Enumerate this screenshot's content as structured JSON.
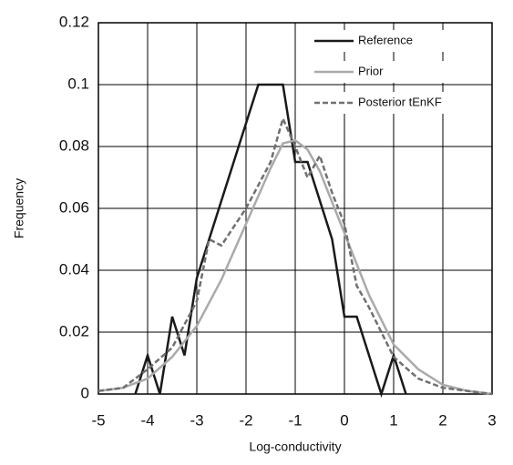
{
  "chart_data": {
    "type": "line",
    "xlabel": "Log-conductivity",
    "ylabel": "Frequency",
    "xlim": [
      -5,
      3
    ],
    "ylim": [
      0,
      0.12
    ],
    "xticks": [
      -5,
      -4,
      -3,
      -2,
      -1,
      0,
      1,
      2,
      3
    ],
    "yticks": [
      0,
      0.02,
      0.04,
      0.06,
      0.08,
      0.1,
      0.12
    ],
    "grid": true,
    "legend": "upper right",
    "series": [
      {
        "name": "Reference",
        "color": "#1a1a1a",
        "dash": "solid",
        "x": [
          -4.25,
          -4,
          -3.75,
          -3.5,
          -3.25,
          -3,
          -2.75,
          -2.5,
          -2.25,
          -2,
          -1.75,
          -1.5,
          -1.25,
          -1,
          -0.75,
          -0.5,
          -0.25,
          0,
          0.25,
          0.5,
          0.75,
          1,
          1.25
        ],
        "values": [
          0,
          0.0125,
          0,
          0.025,
          0.0125,
          0.0375,
          0.05,
          0.0625,
          0.075,
          0.0875,
          0.1,
          0.1,
          0.1,
          0.075,
          0.075,
          0.0625,
          0.05,
          0.025,
          0.025,
          0.0125,
          0,
          0.0125,
          0
        ]
      },
      {
        "name": "Prior",
        "color": "#aaaaaa",
        "dash": "solid",
        "x": [
          -5,
          -4.5,
          -4,
          -3.5,
          -3,
          -2.5,
          -2,
          -1.5,
          -1.25,
          -1,
          -0.75,
          -0.5,
          0,
          0.5,
          1,
          1.5,
          2,
          2.5,
          3
        ],
        "values": [
          0.001,
          0.002,
          0.005,
          0.012,
          0.022,
          0.037,
          0.055,
          0.073,
          0.081,
          0.082,
          0.079,
          0.072,
          0.052,
          0.032,
          0.016,
          0.008,
          0.003,
          0.001,
          0
        ]
      },
      {
        "name": "Posterior tEnKF",
        "color": "#707070",
        "dash": "dashed",
        "x": [
          -5,
          -4.5,
          -4,
          -3.5,
          -3,
          -2.75,
          -2.5,
          -2,
          -1.5,
          -1.25,
          -1,
          -0.75,
          -0.5,
          -0.25,
          0,
          0.25,
          0.5,
          1,
          1.5,
          2,
          2.5,
          3
        ],
        "values": [
          0.001,
          0.002,
          0.008,
          0.015,
          0.03,
          0.05,
          0.048,
          0.06,
          0.075,
          0.089,
          0.08,
          0.07,
          0.077,
          0.065,
          0.055,
          0.035,
          0.028,
          0.012,
          0.005,
          0.002,
          0.001,
          0
        ]
      }
    ]
  }
}
